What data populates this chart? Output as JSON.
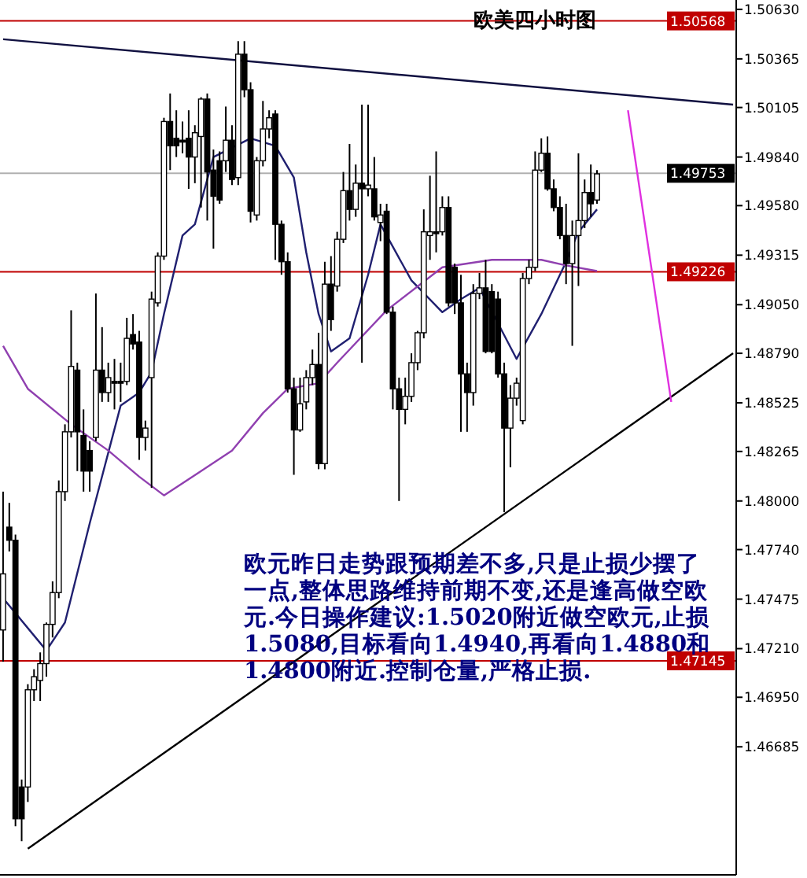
{
  "chart_data": {
    "type": "candlestick",
    "title": "欧美四小时图",
    "categories": [
      null,
      null,
      null,
      null,
      null,
      null,
      null,
      null,
      null,
      null,
      null,
      null,
      null,
      null,
      null,
      null,
      null,
      null,
      null,
      null,
      null,
      null,
      null,
      null,
      null,
      null,
      null,
      null,
      null,
      null,
      null,
      null,
      null,
      null,
      null,
      null,
      null,
      null,
      null,
      null,
      null,
      null,
      null,
      null,
      null,
      null,
      null,
      null,
      null,
      null,
      null,
      null,
      null,
      null,
      null,
      null,
      null,
      null,
      null,
      null,
      null,
      null,
      null,
      null,
      null,
      null,
      null,
      null,
      null,
      null,
      null,
      null,
      null,
      null,
      null,
      null,
      null,
      null,
      null,
      null,
      null,
      null,
      null,
      null,
      null,
      null,
      null,
      null,
      null,
      null,
      null,
      null,
      null,
      null,
      null,
      null,
      null,
      null,
      null,
      null,
      null,
      null,
      null,
      null,
      null,
      null,
      null,
      null,
      null,
      null,
      null,
      null,
      null,
      null,
      null,
      null,
      null,
      null,
      null
    ],
    "ohlc": [
      [
        1.4731,
        1.4805,
        1.4714,
        1.4761
      ],
      [
        1.4786,
        1.4799,
        1.4773,
        1.4779
      ],
      [
        1.4779,
        1.4782,
        1.4626,
        1.463
      ],
      [
        1.4647,
        1.4651,
        1.4618,
        1.463
      ],
      [
        1.4647,
        1.4702,
        1.4639,
        1.4699
      ],
      [
        1.4699,
        1.471,
        1.4693,
        1.4706
      ],
      [
        1.4704,
        1.4719,
        1.4693,
        1.4713
      ],
      [
        1.4713,
        1.4735,
        1.4706,
        1.4734
      ],
      [
        1.4734,
        1.4757,
        1.4727,
        1.4751
      ],
      [
        1.4751,
        1.4811,
        1.4748,
        1.4805
      ],
      [
        1.4805,
        1.4841,
        1.48,
        1.4837
      ],
      [
        1.4837,
        1.4902,
        1.4834,
        1.4872
      ],
      [
        1.487,
        1.4874,
        1.4816,
        1.4837
      ],
      [
        1.4835,
        1.4849,
        1.4805,
        1.4816
      ],
      [
        1.4827,
        1.4832,
        1.4805,
        1.4816
      ],
      [
        1.4834,
        1.4911,
        1.4832,
        1.487
      ],
      [
        1.487,
        1.4893,
        1.4853,
        1.4858
      ],
      [
        1.4858,
        1.4874,
        1.4853,
        1.4866
      ],
      [
        1.4864,
        1.4876,
        1.4849,
        1.4863
      ],
      [
        1.4864,
        1.4874,
        1.4853,
        1.4863
      ],
      [
        1.4864,
        1.4898,
        1.4862,
        1.4887
      ],
      [
        1.4889,
        1.49,
        1.4881,
        1.4884
      ],
      [
        1.4885,
        1.4891,
        1.4822,
        1.4834
      ],
      [
        1.4834,
        1.4843,
        1.4827,
        1.4839
      ],
      [
        1.4866,
        1.4912,
        1.4807,
        1.4908
      ],
      [
        1.4906,
        1.4933,
        1.4904,
        1.4931
      ],
      [
        1.4931,
        1.5005,
        1.4929,
        1.5003
      ],
      [
        1.5003,
        1.5018,
        1.4977,
        1.499
      ],
      [
        1.4994,
        1.5009,
        1.4984,
        1.499
      ],
      [
        1.4993,
        1.5003,
        1.4986,
        1.4992
      ],
      [
        1.4994,
        1.5009,
        1.4967,
        1.4984
      ],
      [
        1.4984,
        1.5001,
        1.497,
        1.4997
      ],
      [
        1.4995,
        1.5016,
        1.4957,
        1.5015
      ],
      [
        1.5015,
        1.5018,
        1.495,
        1.4976
      ],
      [
        1.4977,
        1.4988,
        1.4935,
        1.4963
      ],
      [
        1.4982,
        1.4987,
        1.4959,
        1.4961
      ],
      [
        1.4982,
        1.5011,
        1.4976,
        1.4993
      ],
      [
        1.4993,
        1.5001,
        1.4969,
        1.4972
      ],
      [
        1.4973,
        1.5046,
        1.4969,
        1.5039
      ],
      [
        1.5039,
        1.5046,
        1.5016,
        1.502
      ],
      [
        1.502,
        1.5024,
        1.4949,
        1.4955
      ],
      [
        1.4953,
        1.4984,
        1.495,
        1.4982
      ],
      [
        1.4982,
        1.5014,
        1.4979,
        1.4999
      ],
      [
        1.4999,
        1.5009,
        1.4994,
        1.5005
      ],
      [
        1.5007,
        1.5009,
        1.4929,
        1.4948
      ],
      [
        1.4948,
        1.495,
        1.4921,
        1.4928
      ],
      [
        1.4928,
        1.4933,
        1.4858,
        1.486
      ],
      [
        1.486,
        1.4866,
        1.4814,
        1.4838
      ],
      [
        1.4838,
        1.4866,
        1.4837,
        1.4852
      ],
      [
        1.4853,
        1.487,
        1.4849,
        1.4866
      ],
      [
        1.4866,
        1.4881,
        1.4862,
        1.4873
      ],
      [
        1.4873,
        1.489,
        1.4817,
        1.482
      ],
      [
        1.482,
        1.4928,
        1.4817,
        1.4916
      ],
      [
        1.4916,
        1.4931,
        1.4891,
        1.4897
      ],
      [
        1.4915,
        1.4944,
        1.4912,
        1.494
      ],
      [
        1.494,
        1.4976,
        1.4938,
        1.4966
      ],
      [
        1.4966,
        1.4991,
        1.495,
        1.4956
      ],
      [
        1.4956,
        1.498,
        1.4952,
        1.497
      ],
      [
        1.497,
        1.5012,
        1.4874,
        1.4967
      ],
      [
        1.4967,
        1.5012,
        1.4963,
        1.4969
      ],
      [
        1.4967,
        1.4984,
        1.495,
        1.4952
      ],
      [
        1.4949,
        1.4959,
        1.4939,
        1.4953
      ],
      [
        1.4955,
        1.4959,
        1.49,
        1.4901
      ],
      [
        1.4901,
        1.4904,
        1.4849,
        1.486
      ],
      [
        1.486,
        1.4866,
        1.48,
        1.4849
      ],
      [
        1.4849,
        1.4866,
        1.4841,
        1.4856
      ],
      [
        1.4856,
        1.4879,
        1.4853,
        1.4874
      ],
      [
        1.4874,
        1.4891,
        1.487,
        1.489
      ],
      [
        1.489,
        1.4956,
        1.4887,
        1.4944
      ],
      [
        1.4942,
        1.4974,
        1.4929,
        1.4944
      ],
      [
        1.4944,
        1.4987,
        1.4933,
        1.4943
      ],
      [
        1.4944,
        1.4963,
        1.4942,
        1.4957
      ],
      [
        1.4957,
        1.4963,
        1.4904,
        1.4906
      ],
      [
        1.4925,
        1.4927,
        1.49,
        1.4906
      ],
      [
        1.4906,
        1.4921,
        1.4837,
        1.4868
      ],
      [
        1.4868,
        1.4874,
        1.4837,
        1.4858
      ],
      [
        1.4858,
        1.4916,
        1.4851,
        1.4911
      ],
      [
        1.4911,
        1.4922,
        1.4908,
        1.4914
      ],
      [
        1.4914,
        1.4929,
        1.4879,
        1.488
      ],
      [
        1.4912,
        1.4916,
        1.4879,
        1.488
      ],
      [
        1.4908,
        1.4912,
        1.4866,
        1.4868
      ],
      [
        1.4868,
        1.4874,
        1.4794,
        1.4839
      ],
      [
        1.4839,
        1.4862,
        1.4818,
        1.4855
      ],
      [
        1.4855,
        1.4866,
        1.4851,
        1.4863
      ],
      [
        1.4843,
        1.4922,
        1.4841,
        1.4919
      ],
      [
        1.4919,
        1.4929,
        1.4916,
        1.4925
      ],
      [
        1.4925,
        1.4987,
        1.4923,
        1.4977
      ],
      [
        1.4977,
        1.4994,
        1.4976,
        1.4986
      ],
      [
        1.4986,
        1.4995,
        1.4966,
        1.4967
      ],
      [
        1.4967,
        1.4972,
        1.4955,
        1.4957
      ],
      [
        1.4957,
        1.4963,
        1.494,
        1.4942
      ],
      [
        1.4942,
        1.4959,
        1.4916,
        1.4927
      ],
      [
        1.4927,
        1.495,
        1.4883,
        1.4942
      ],
      [
        1.4942,
        1.4986,
        1.4915,
        1.495
      ],
      [
        1.495,
        1.4972,
        1.4946,
        1.4965
      ],
      [
        1.4965,
        1.498,
        1.4952,
        1.4959
      ],
      [
        1.4961,
        1.4977,
        1.4959,
        1.4975
      ],
      null,
      null,
      null,
      null,
      null,
      null,
      null,
      null,
      null,
      null,
      null,
      null,
      null,
      null,
      null,
      null,
      null,
      null,
      null,
      null,
      null,
      null
    ],
    "series": [
      {
        "type": "line",
        "color": "#202070",
        "values": [
          1.4748,
          null,
          null,
          null,
          null,
          null,
          null,
          1.472,
          null,
          null,
          1.4735,
          null,
          null,
          null,
          1.4788,
          null,
          null,
          null,
          null,
          1.4851,
          null,
          null,
          1.4858,
          null,
          1.4869,
          null,
          1.49,
          null,
          null,
          1.4942,
          null,
          1.4948,
          null,
          null,
          1.4984,
          null,
          null,
          null,
          null,
          null,
          1.4994,
          null,
          null,
          null,
          1.499,
          null,
          null,
          1.4973,
          null,
          1.4933,
          null,
          1.49,
          null,
          1.488,
          null,
          null,
          1.4887,
          null,
          null,
          1.4921,
          null,
          1.4948,
          null,
          null,
          null,
          null,
          1.4918,
          null,
          null,
          null,
          null,
          1.4901,
          null,
          null,
          1.4908,
          null,
          null,
          1.4914,
          null,
          null,
          1.4895,
          null,
          null,
          1.4876,
          null,
          null,
          null,
          1.49,
          null,
          null,
          null,
          1.4928,
          null,
          1.4944,
          null,
          null,
          1.4956,
          null,
          null,
          null,
          null,
          null,
          null,
          null,
          null,
          null,
          null,
          null,
          null,
          null,
          null,
          null,
          null,
          null,
          null,
          null,
          null,
          null,
          null
        ]
      },
      {
        "type": "line",
        "color": "#9040b0",
        "values": [
          1.4883,
          null,
          null,
          null,
          1.486,
          null,
          null,
          null,
          null,
          null,
          null,
          1.4841,
          null,
          null,
          null,
          null,
          null,
          1.4827,
          null,
          null,
          null,
          null,
          1.4813,
          null,
          null,
          null,
          1.4803,
          null,
          null,
          null,
          null,
          null,
          1.4816,
          null,
          null,
          null,
          null,
          1.4827,
          null,
          null,
          null,
          null,
          1.4847,
          null,
          null,
          null,
          1.486,
          null,
          null,
          null,
          null,
          1.4863,
          null,
          null,
          1.4874,
          null,
          null,
          null,
          null,
          null,
          null,
          null,
          1.4902,
          null,
          null,
          null,
          null,
          null,
          null,
          null,
          null,
          1.4925,
          null,
          null,
          null,
          null,
          null,
          null,
          null,
          1.4929,
          null,
          null,
          null,
          null,
          null,
          null,
          null,
          1.4929,
          null,
          null,
          null,
          1.4926,
          null,
          null,
          null,
          null,
          1.4923,
          null,
          null,
          null,
          null,
          null,
          null,
          null,
          null,
          null,
          null,
          null,
          null,
          null,
          null,
          null,
          null,
          null,
          null,
          null,
          null,
          null,
          null
        ]
      },
      {
        "type": "line",
        "color": "#101040",
        "values": [
          1.5047,
          null,
          null,
          null,
          null,
          null,
          null,
          null,
          null,
          null,
          null,
          null,
          null,
          null,
          null,
          null,
          null,
          null,
          null,
          null,
          null,
          null,
          null,
          null,
          null,
          null,
          null,
          null,
          null,
          null,
          null,
          null,
          null,
          null,
          null,
          null,
          null,
          null,
          null,
          null,
          null,
          null,
          null,
          null,
          null,
          null,
          null,
          null,
          null,
          null,
          null,
          null,
          null,
          null,
          null,
          null,
          null,
          null,
          null,
          null,
          null,
          null,
          null,
          null,
          null,
          null,
          null,
          null,
          null,
          null,
          null,
          null,
          null,
          null,
          null,
          null,
          null,
          null,
          null,
          null,
          null,
          null,
          null,
          null,
          null,
          null,
          null,
          null,
          null,
          null,
          null,
          null,
          null,
          null,
          null,
          null,
          null,
          null,
          null,
          null,
          null,
          null,
          null,
          null,
          null,
          null,
          null,
          null,
          null,
          null,
          null,
          null,
          null,
          null,
          null,
          null,
          null,
          null,
          1.5012
        ]
      },
      {
        "type": "line",
        "color": "#000000",
        "values": [
          null,
          null,
          null,
          null,
          1.4614,
          null,
          null,
          null,
          null,
          null,
          null,
          null,
          null,
          null,
          null,
          null,
          null,
          null,
          null,
          null,
          null,
          null,
          null,
          null,
          null,
          null,
          null,
          null,
          null,
          null,
          null,
          null,
          null,
          null,
          null,
          null,
          null,
          null,
          null,
          null,
          null,
          null,
          null,
          null,
          null,
          null,
          null,
          null,
          null,
          null,
          null,
          null,
          null,
          null,
          null,
          null,
          null,
          null,
          null,
          null,
          null,
          null,
          null,
          null,
          null,
          null,
          null,
          null,
          null,
          null,
          null,
          null,
          null,
          null,
          null,
          null,
          null,
          null,
          null,
          null,
          null,
          null,
          null,
          null,
          null,
          null,
          null,
          null,
          null,
          null,
          null,
          null,
          null,
          null,
          null,
          null,
          null,
          null,
          null,
          null,
          null,
          null,
          null,
          null,
          null,
          null,
          null,
          null,
          null,
          null,
          null,
          null,
          null,
          null,
          null,
          null,
          null,
          null,
          1.4879
        ]
      },
      {
        "type": "line",
        "color": "#e030e0",
        "values": [
          null,
          null,
          null,
          null,
          null,
          null,
          null,
          null,
          null,
          null,
          null,
          null,
          null,
          null,
          null,
          null,
          null,
          null,
          null,
          null,
          null,
          null,
          null,
          null,
          null,
          null,
          null,
          null,
          null,
          null,
          null,
          null,
          null,
          null,
          null,
          null,
          null,
          null,
          null,
          null,
          null,
          null,
          null,
          null,
          null,
          null,
          null,
          null,
          null,
          null,
          null,
          null,
          null,
          null,
          null,
          null,
          null,
          null,
          null,
          null,
          null,
          null,
          null,
          null,
          null,
          null,
          null,
          null,
          null,
          null,
          null,
          null,
          null,
          null,
          null,
          null,
          null,
          null,
          null,
          null,
          null,
          null,
          null,
          null,
          null,
          null,
          null,
          null,
          null,
          null,
          null,
          null,
          null,
          null,
          null,
          null,
          null,
          null,
          null,
          null,
          null,
          1.5009,
          null,
          null,
          null,
          null,
          null,
          null,
          1.4853,
          null,
          null,
          null,
          null,
          null,
          null,
          null,
          null,
          null,
          null
        ]
      }
    ],
    "ylim": [
      1.46,
      1.5068
    ],
    "yticks": [
      {
        "value": 1.5063,
        "label": "1.50630"
      },
      {
        "value": 1.50365,
        "label": "1.50365"
      },
      {
        "value": 1.50105,
        "label": "1.50105"
      },
      {
        "value": 1.4984,
        "label": "1.49840"
      },
      {
        "value": 1.4958,
        "label": "1.49580"
      },
      {
        "value": 1.49315,
        "label": "1.49315"
      },
      {
        "value": 1.4905,
        "label": "1.49050"
      },
      {
        "value": 1.4879,
        "label": "1.48790"
      },
      {
        "value": 1.48525,
        "label": "1.48525"
      },
      {
        "value": 1.48265,
        "label": "1.48265"
      },
      {
        "value": 1.48,
        "label": "1.48000"
      },
      {
        "value": 1.4774,
        "label": "1.47740"
      },
      {
        "value": 1.47475,
        "label": "1.47475"
      },
      {
        "value": 1.4721,
        "label": "1.47210"
      },
      {
        "value": 1.4695,
        "label": "1.46950"
      },
      {
        "value": 1.46685,
        "label": "1.46685"
      }
    ],
    "ref_lines": [
      {
        "axis": "y",
        "value": 1.50568,
        "label": "1.50568",
        "color": "#c00000"
      },
      {
        "axis": "y",
        "value": 1.49753,
        "label": "1.49753",
        "color": "#b0b0b0"
      },
      {
        "axis": "y",
        "value": 1.49226,
        "label": "1.49226",
        "color": "#c00000"
      },
      {
        "axis": "y",
        "value": 1.47145,
        "label": "1.47145",
        "color": "#c00000"
      }
    ],
    "tick_labels": "y",
    "annotations": [
      "欧元昨日走势跟预期差不多,只是止损少摆了一点,整体思路维持前期不变,还是逢高做空欧元.今日操作建议:1.5020附近做空欧元,止损1.5080,目标看向1.4940,再看向1.4880和1.4800附近.控制仓量,严格止损."
    ]
  }
}
